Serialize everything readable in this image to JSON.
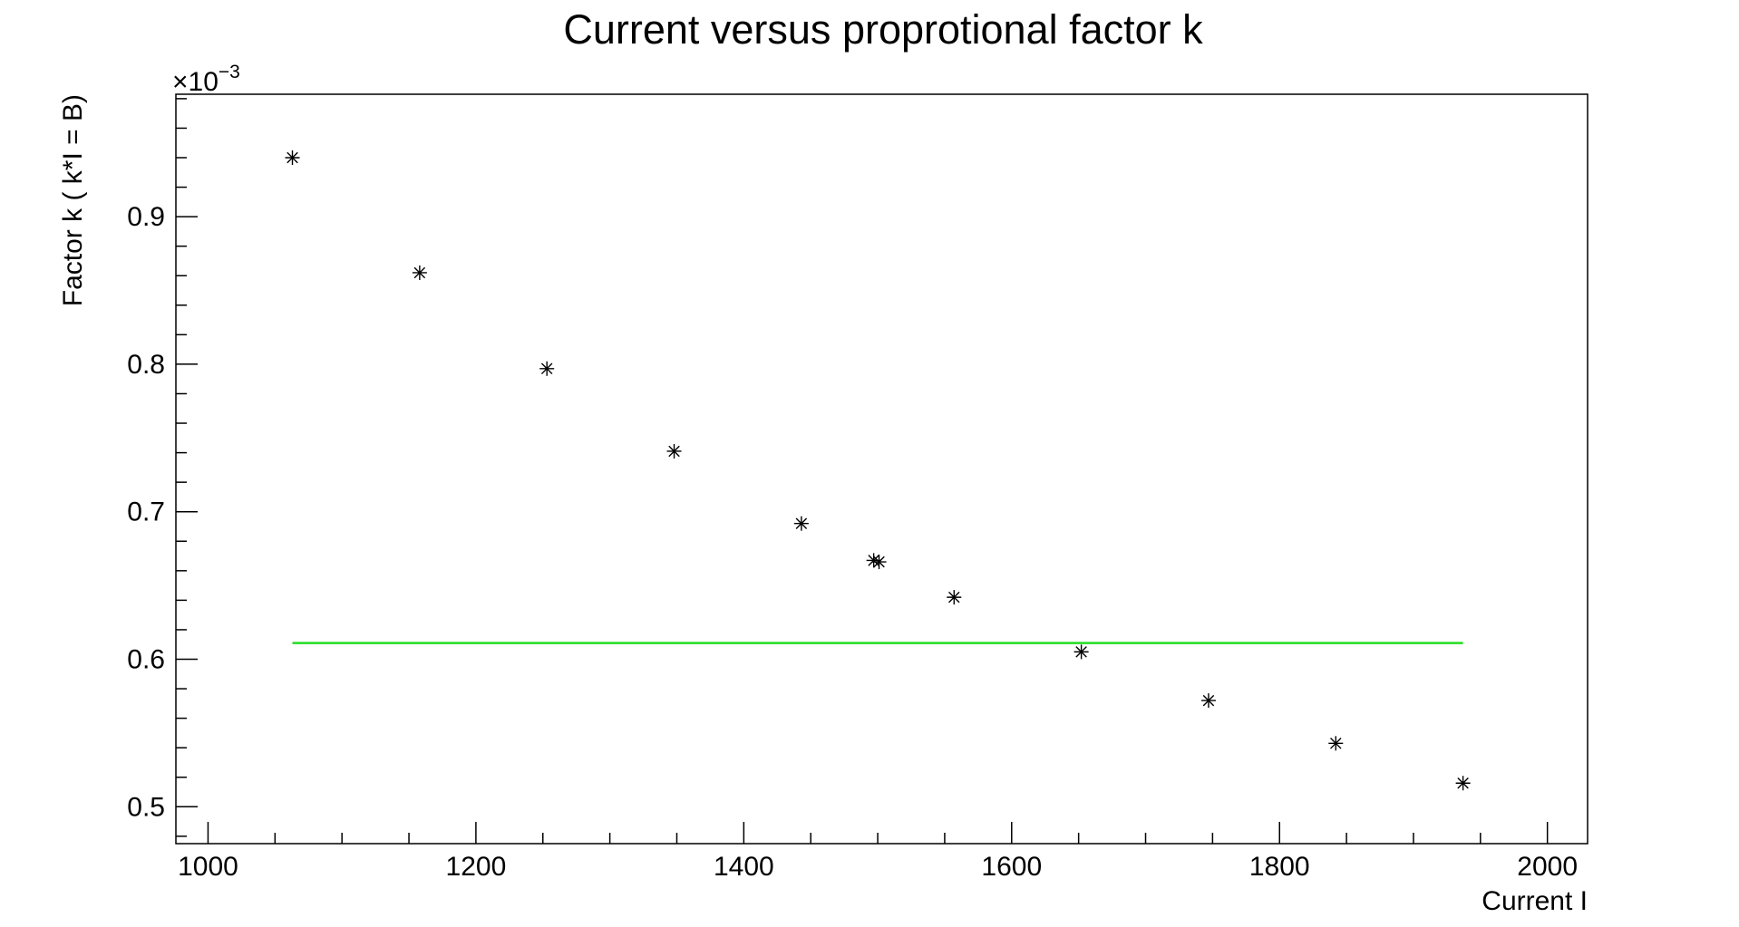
{
  "chart_data": {
    "type": "scatter",
    "title": "Current versus proprotional factor k",
    "xlabel": "Current I",
    "ylabel": "Factor k ( k*I = B)",
    "y_multiplier": "×10",
    "y_multiplier_exponent": "−3",
    "xlim": [
      976,
      2030
    ],
    "ylim": [
      0.475,
      0.983
    ],
    "x_ticks": [
      1000,
      1200,
      1400,
      1600,
      1800,
      2000
    ],
    "x_tick_labels": [
      "1000",
      "1200",
      "1400",
      "1600",
      "1800",
      "2000"
    ],
    "y_ticks": [
      0.5,
      0.6,
      0.7,
      0.8,
      0.9
    ],
    "y_tick_labels": [
      "0.5",
      "0.6",
      "0.7",
      "0.8",
      "0.9"
    ],
    "grid": false,
    "marker": "asterisk",
    "marker_color": "#000000",
    "series": [
      {
        "x": [
          1063,
          1158,
          1253,
          1348,
          1443,
          1497,
          1501,
          1557,
          1652,
          1747,
          1842,
          1937
        ],
        "y": [
          0.94,
          0.862,
          0.797,
          0.741,
          0.692,
          0.667,
          0.666,
          0.642,
          0.605,
          0.572,
          0.543,
          0.516
        ]
      }
    ],
    "fit_line": {
      "color": "#22dd22",
      "x": [
        1063,
        1937
      ],
      "y": [
        0.611,
        0.611
      ]
    }
  }
}
